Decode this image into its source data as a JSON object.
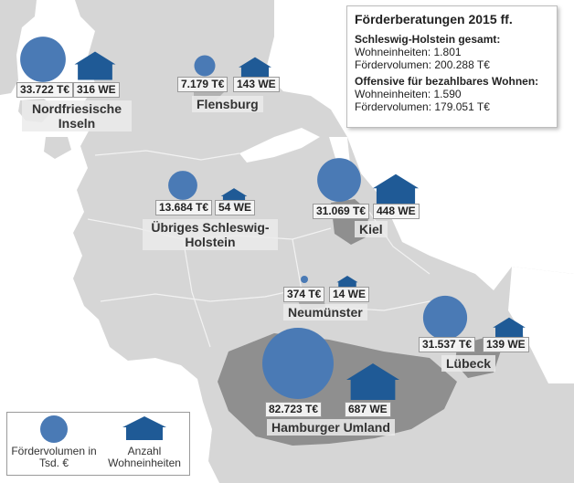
{
  "info_panel": {
    "title": "Förderberatungen 2015 ff.",
    "section1": {
      "heading": "Schleswig-Holstein gesamt:",
      "wohneinheiten": "Wohneinheiten: 1.801",
      "foerdervolumen": "Fördervolumen: 200.288 T€"
    },
    "section2": {
      "heading": "Offensive für bezahlbares Wohnen:",
      "wohneinheiten": "Wohneinheiten: 1.590",
      "foerdervolumen": "Fördervolumen: 179.051 T€"
    }
  },
  "regions": [
    {
      "name": "Nordfriesische Inseln",
      "volume_label": "33.722 T€",
      "volume_teur": 33722,
      "units_label": "316 WE",
      "units": 316
    },
    {
      "name": "Flensburg",
      "volume_label": "7.179 T€",
      "volume_teur": 7179,
      "units_label": "143 WE",
      "units": 143
    },
    {
      "name": "Übriges Schleswig-Holstein",
      "volume_label": "13.684 T€",
      "volume_teur": 13684,
      "units_label": "54 WE",
      "units": 54
    },
    {
      "name": "Kiel",
      "volume_label": "31.069 T€",
      "volume_teur": 31069,
      "units_label": "448 WE",
      "units": 448
    },
    {
      "name": "Neumünster",
      "volume_label": "374 T€",
      "volume_teur": 374,
      "units_label": "14 WE",
      "units": 14
    },
    {
      "name": "Lübeck",
      "volume_label": "31.537 T€",
      "volume_teur": 31537,
      "units_label": "139 WE",
      "units": 139
    },
    {
      "name": "Hamburger Umland",
      "volume_label": "82.723 T€",
      "volume_teur": 82723,
      "units_label": "687 WE",
      "units": 687
    }
  ],
  "legend": {
    "circle_label": "Fördervolumen in Tsd. €",
    "house_label": "Anzahl Wohneinheiten"
  },
  "colors": {
    "water": "#ffffff",
    "land": "#d6d6d6",
    "region_dark": "#8f8f8f",
    "region_mid": "#a8a8a8",
    "circle_fill": "#4a7ab5",
    "house_fill": "#1f5a96"
  },
  "icons": [
    "circle-symbol",
    "house-icon"
  ]
}
